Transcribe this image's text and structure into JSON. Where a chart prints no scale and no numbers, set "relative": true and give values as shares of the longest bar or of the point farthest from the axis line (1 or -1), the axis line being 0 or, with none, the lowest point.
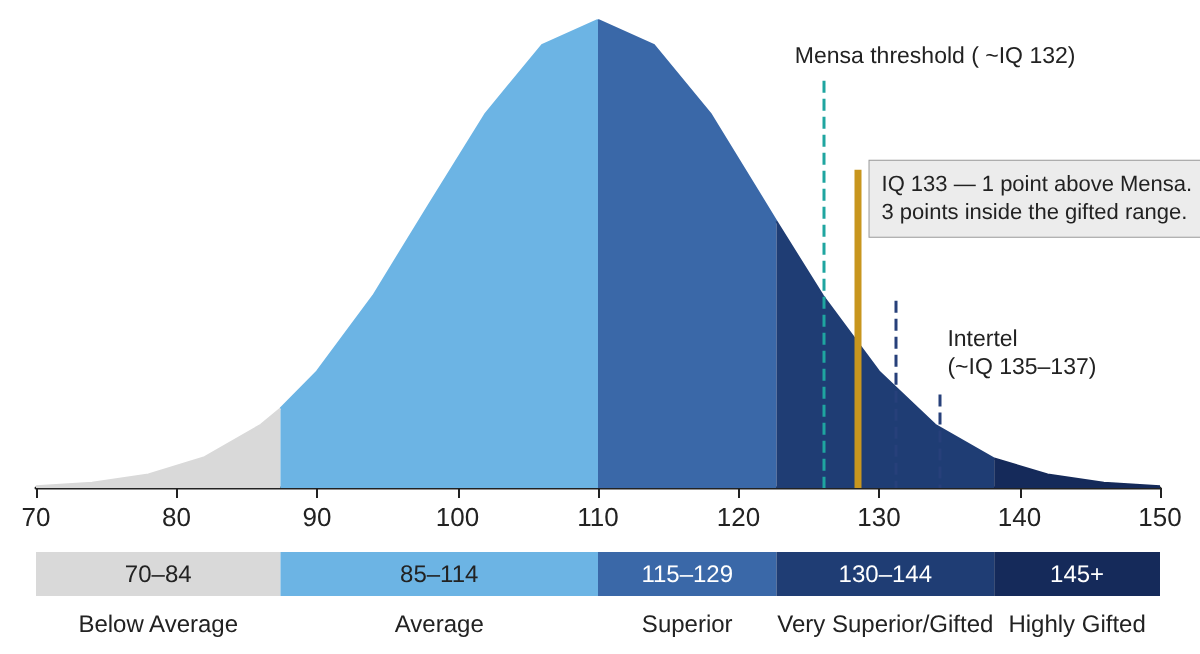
{
  "chart_data": {
    "type": "area",
    "relative": true,
    "xlim": [
      70,
      150
    ],
    "xticks": [
      70,
      80,
      90,
      100,
      110,
      120,
      130,
      140,
      150
    ],
    "grid": false,
    "legend": "bottom",
    "marker": "none",
    "series": [
      {
        "name": "70–84",
        "color": "#d9d9d9",
        "x": [
          70,
          74,
          78,
          82,
          86,
          87.4
        ],
        "values": [
          0.004,
          0.011,
          0.029,
          0.066,
          0.135,
          0.17
        ]
      },
      {
        "name": "85–114",
        "color": "#6cb4e4",
        "x": [
          87.4,
          90,
          94,
          98,
          102,
          106,
          110
        ],
        "values": [
          0.17,
          0.249,
          0.411,
          0.607,
          0.8,
          0.946,
          1
        ]
      },
      {
        "name": "115–129",
        "color": "#3a68a8",
        "x": [
          110,
          114,
          118,
          122.7
        ],
        "values": [
          1,
          0.946,
          0.8,
          0.57
        ]
      },
      {
        "name": "130–144",
        "color": "#1f3d74",
        "x": [
          122.7,
          126,
          130,
          134,
          138.2
        ],
        "values": [
          0.57,
          0.411,
          0.249,
          0.135,
          0.063
        ]
      },
      {
        "name": "145+",
        "color": "#152a5a",
        "x": [
          138.2,
          142,
          146,
          150
        ],
        "values": [
          0.063,
          0.029,
          0.011,
          0.004
        ]
      }
    ],
    "ref_lines": [
      {
        "axis": "x",
        "value": 126,
        "label": "Mensa threshold ( ~IQ 132)",
        "color": "#1fa5a0",
        "line_style": "dashed"
      },
      {
        "axis": "x",
        "value": 128.4,
        "label": "IQ 133 — 1 point above Mensa.\n3 points inside the gifted range.",
        "color": "#c8961e",
        "line_style": "solid"
      },
      {
        "axis": "x",
        "value": 131.2,
        "label": null,
        "color": "#27407a",
        "line_style": "dashed"
      },
      {
        "axis": "x",
        "value": 134.3,
        "label": "Intertel\n(~IQ 135–137)",
        "color": "#27407a",
        "line_style": "dashed"
      }
    ],
    "annotations": [
      "Below Average",
      "Average",
      "Superior",
      "Very Superior/Gifted",
      "Highly Gifted"
    ]
  }
}
